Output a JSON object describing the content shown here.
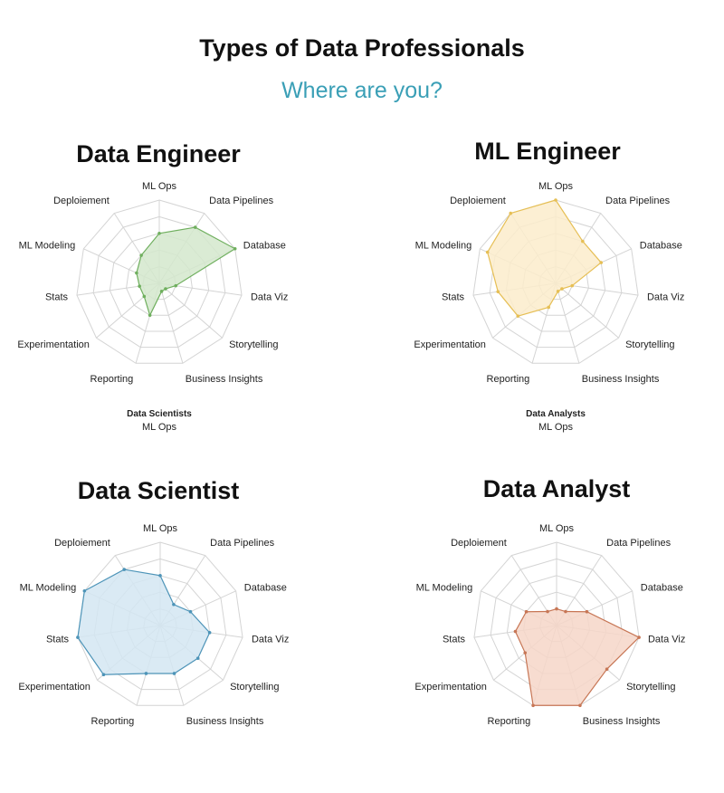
{
  "header": {
    "title": "Types of Data Professionals",
    "subtitle": "Where are you?"
  },
  "captions": [
    {
      "bold": "Data Scientists",
      "text": "ML Ops"
    },
    {
      "bold": "Data Analysts",
      "text": "ML Ops"
    }
  ],
  "chart_data": [
    {
      "type": "radar",
      "title": "Data Engineer",
      "categories": [
        "ML Ops",
        "Data Pipelines",
        "Database",
        "Data Viz",
        "Storytelling",
        "Business Insights",
        "Reporting",
        "Experimentation",
        "Stats",
        "ML Modeling",
        "Deploiement"
      ],
      "values": [
        3,
        4,
        5,
        1,
        0.5,
        0.5,
        2,
        1.2,
        1.2,
        1.5,
        2
      ],
      "range": [
        0,
        5
      ],
      "color": "#6faf5e",
      "fill": "#d4e8cc"
    },
    {
      "type": "radar",
      "title": "ML Engineer",
      "categories": [
        "ML Ops",
        "Data Pipelines",
        "Database",
        "Data Viz",
        "Storytelling",
        "Business Insights",
        "Reporting",
        "Experimentation",
        "Stats",
        "ML Modeling",
        "Deploiement"
      ],
      "values": [
        5,
        3,
        3,
        1,
        0.5,
        0.5,
        1.5,
        3,
        3.5,
        4.5,
        5
      ],
      "range": [
        0,
        5
      ],
      "color": "#e6bf55",
      "fill": "#fbeccb"
    },
    {
      "type": "radar",
      "title": "Data Scientist",
      "categories": [
        "ML Ops",
        "Data Pipelines",
        "Database",
        "Data Viz",
        "Storytelling",
        "Business Insights",
        "Reporting",
        "Experimentation",
        "Stats",
        "ML Modeling",
        "Deploiement"
      ],
      "values": [
        3,
        1.5,
        2,
        3,
        3,
        3,
        3,
        4.5,
        5,
        5,
        4
      ],
      "range": [
        0,
        5
      ],
      "color": "#4d94b8",
      "fill": "#d3e6f2"
    },
    {
      "type": "radar",
      "title": "Data Analyst",
      "categories": [
        "ML Ops",
        "Data Pipelines",
        "Database",
        "Data Viz",
        "Storytelling",
        "Business Insights",
        "Reporting",
        "Experimentation",
        "Stats",
        "ML Modeling",
        "Deploiement"
      ],
      "values": [
        1,
        1,
        2,
        5,
        4,
        5,
        5,
        2.5,
        2.5,
        2,
        1
      ],
      "range": [
        0,
        5
      ],
      "color": "#c77655",
      "fill": "#f6d6c8"
    }
  ]
}
